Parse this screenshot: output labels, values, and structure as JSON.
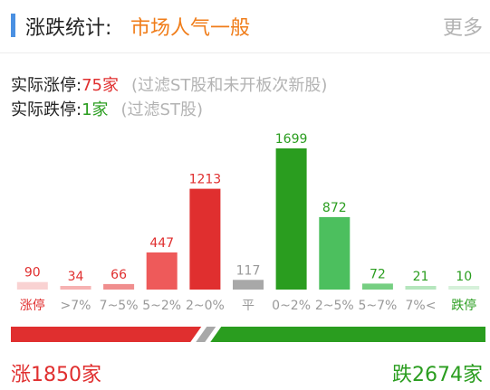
{
  "header": {
    "title": "涨跌统计:",
    "mood": "市场人气一般",
    "more": "更多"
  },
  "stats": {
    "limit_up_label": "实际涨停:",
    "limit_up_value": "75家",
    "limit_up_note": "(过滤ST股和未开板次新股)",
    "limit_down_label": "实际跌停:",
    "limit_down_value": "1家",
    "limit_down_note": "(过滤ST股)"
  },
  "chart_data": {
    "type": "bar",
    "categories": [
      "涨停",
      ">7%",
      "7~5%",
      "5~2%",
      "2~0%",
      "平",
      "0~2%",
      "2~5%",
      "5~7%",
      "7%<",
      "跌停"
    ],
    "values": [
      90,
      34,
      66,
      447,
      1213,
      117,
      1699,
      872,
      72,
      21,
      10
    ],
    "bar_colors": [
      "#f9d2d2",
      "#f6b2b2",
      "#f08e8e",
      "#ee5a5a",
      "#e02f2f",
      "#a8a8a8",
      "#2a9d1f",
      "#4cbf5e",
      "#76cf82",
      "#b5e6bd",
      "#d6f1da"
    ],
    "label_colors": [
      "#e02f2f",
      "#e02f2f",
      "#e02f2f",
      "#e02f2f",
      "#e02f2f",
      "#999999",
      "#2a9d1f",
      "#2a9d1f",
      "#2a9d1f",
      "#2a9d1f",
      "#2a9d1f"
    ],
    "category_colors": [
      "#e02f2f",
      "#999999",
      "#999999",
      "#999999",
      "#999999",
      "#999999",
      "#999999",
      "#999999",
      "#999999",
      "#999999",
      "#2a9d1f"
    ],
    "ylim": [
      0,
      1699
    ]
  },
  "totals": {
    "up": "涨1850家",
    "down": "跌2674家",
    "up_count": 1850,
    "down_count": 2674,
    "up_color": "#e02f2f",
    "down_color": "#2a9d1f",
    "neutral_color": "#a8a8a8"
  }
}
